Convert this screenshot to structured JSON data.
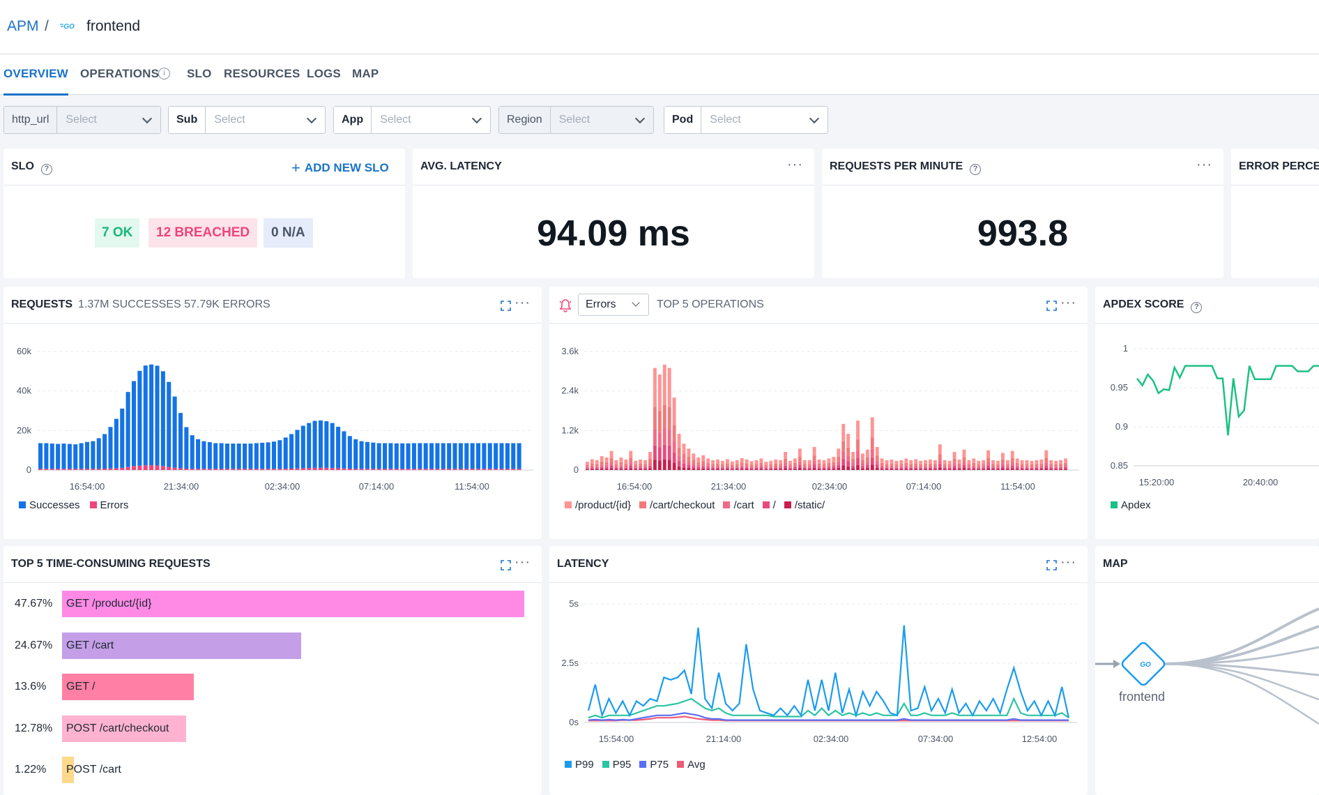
{
  "breadcrumb": {
    "root": "APM",
    "separator": "/",
    "service_icon": "go-icon",
    "service": "frontend"
  },
  "tabs": [
    {
      "label": "OVERVIEW",
      "active": true
    },
    {
      "label": "OPERATIONS",
      "info_icon": "info-icon"
    },
    {
      "label": "SLO"
    },
    {
      "label": "RESOURCES"
    },
    {
      "label": "LOGS"
    },
    {
      "label": "MAP"
    }
  ],
  "filters": [
    {
      "label": "http_url",
      "placeholder": "Select"
    },
    {
      "label": "Sub",
      "placeholder": "Select"
    },
    {
      "label": "App",
      "placeholder": "Select"
    },
    {
      "label": "Region",
      "placeholder": "Select"
    },
    {
      "label": "Pod",
      "placeholder": "Select"
    }
  ],
  "slo": {
    "title": "SLO",
    "add_label": "ADD NEW SLO",
    "ok": "7 OK",
    "breached": "12 BREACHED",
    "na": "0 N/A"
  },
  "latency_stat": {
    "title": "AVG. LATENCY",
    "value": "94.09 ms"
  },
  "rpm_stat": {
    "title": "REQUESTS PER MINUTE",
    "value": "993.8"
  },
  "error_stat": {
    "title": "ERROR PERCE"
  },
  "requests": {
    "title": "REQUESTS",
    "subtitle": "1.37M SUCCESSES 57.79K ERRORS",
    "legend": [
      "Successes",
      "Errors"
    ]
  },
  "operations": {
    "dropdown": "Errors",
    "title": "TOP 5 OPERATIONS",
    "legend": [
      "/product/{id}",
      "/cart/checkout",
      "/cart",
      "/",
      "/static/"
    ]
  },
  "apdex": {
    "title": "APDEX SCORE",
    "legend": [
      "Apdex"
    ]
  },
  "top5": {
    "title": "TOP 5 TIME-CONSUMING REQUESTS",
    "items": [
      {
        "pct": "47.67%",
        "label": "GET /product/{id}",
        "value": 47.67,
        "color": "#ff8ae6"
      },
      {
        "pct": "24.67%",
        "label": "GET /cart",
        "value": 24.67,
        "color": "#c49fe8"
      },
      {
        "pct": "13.6%",
        "label": "GET /",
        "value": 13.6,
        "color": "#ff80a4"
      },
      {
        "pct": "12.78%",
        "label": "POST /cart/checkout",
        "value": 12.78,
        "color": "#ffb3d0"
      },
      {
        "pct": "1.22%",
        "label": "POST /cart",
        "value": 1.22,
        "color": "#ffd88a"
      }
    ]
  },
  "latency_chart": {
    "title": "LATENCY",
    "legend": [
      "P99",
      "P95",
      "P75",
      "Avg"
    ]
  },
  "map": {
    "title": "MAP",
    "node_label": "frontend",
    "node_icon": "go-icon"
  },
  "colors": {
    "accent": "#1a73c8",
    "successes": "#1473e6",
    "errors": "#f0457a",
    "op_product": "#ff9494",
    "op_checkout": "#f27a7a",
    "op_cart": "#f26b86",
    "op_root": "#e84a7c",
    "op_static": "#c7204f",
    "apdex": "#1cc083",
    "p99": "#1a9bf0",
    "p95": "#2bc4a3",
    "p75": "#5b6ef5",
    "avg": "#f05a74"
  },
  "chart_data": [
    {
      "type": "bar",
      "title": "REQUESTS",
      "x_ticks": [
        "16:54:00",
        "21:34:00",
        "02:34:00",
        "07:14:00",
        "11:54:00"
      ],
      "y_ticks": [
        "0",
        "20k",
        "40k",
        "60k"
      ],
      "ylim": [
        0,
        60000
      ],
      "series": [
        {
          "name": "Successes",
          "values": [
            13000,
            13000,
            12800,
            12600,
            12800,
            12600,
            12400,
            13000,
            13600,
            14000,
            15500,
            17500,
            21000,
            25000,
            30000,
            38000,
            43000,
            48000,
            50500,
            51000,
            50500,
            48000,
            43000,
            36000,
            28000,
            21000,
            17000,
            15000,
            14000,
            13500,
            13000,
            13000,
            12800,
            12800,
            12800,
            12800,
            12800,
            13000,
            13200,
            13400,
            13800,
            14500,
            15800,
            17500,
            19500,
            21500,
            22800,
            23800,
            24000,
            23600,
            22800,
            21000,
            18800,
            16500,
            15000,
            14000,
            13600,
            13300,
            13000,
            13000,
            13000,
            12900,
            12900,
            12900,
            13000,
            13000,
            13000,
            13000,
            13000,
            13000,
            13000,
            13000,
            13000,
            13000,
            13000,
            13000,
            13000,
            13000,
            13000,
            13000,
            13000,
            13000,
            13000
          ]
        },
        {
          "name": "Errors",
          "values": [
            600,
            600,
            600,
            600,
            600,
            600,
            600,
            600,
            600,
            600,
            600,
            700,
            800,
            900,
            1100,
            1500,
            2000,
            2200,
            2400,
            2400,
            2300,
            2000,
            1600,
            1200,
            900,
            700,
            600,
            600,
            600,
            600,
            600,
            600,
            600,
            600,
            600,
            600,
            600,
            600,
            600,
            600,
            600,
            600,
            650,
            700,
            800,
            900,
            1000,
            1100,
            1100,
            1100,
            1000,
            900,
            800,
            700,
            600,
            600,
            600,
            600,
            600,
            600,
            600,
            600,
            600,
            600,
            600,
            600,
            600,
            600,
            600,
            600,
            600,
            600,
            600,
            600,
            600,
            600,
            600,
            600,
            600,
            600,
            600,
            600,
            600
          ]
        }
      ],
      "legend_position": "bottom-left"
    },
    {
      "type": "bar",
      "title": "TOP 5 OPERATIONS",
      "x_ticks": [
        "16:54:00",
        "21:34:00",
        "02:34:00",
        "07:14:00",
        "11:54:00"
      ],
      "y_ticks": [
        "0",
        "1.2k",
        "2.4k",
        "3.6k"
      ],
      "ylim": [
        0,
        3600
      ],
      "stacked": true,
      "series_names": [
        "/product/{id}",
        "/cart/checkout",
        "/cart",
        "/",
        "/static/"
      ],
      "totals": [
        250,
        330,
        300,
        420,
        380,
        580,
        300,
        380,
        320,
        580,
        280,
        320,
        300,
        550,
        3100,
        2900,
        3200,
        3100,
        2200,
        1100,
        800,
        650,
        500,
        380,
        450,
        350,
        300,
        320,
        280,
        330,
        260,
        300,
        360,
        320,
        270,
        300,
        350,
        250,
        280,
        320,
        300,
        550,
        280,
        350,
        650,
        300,
        300,
        700,
        320,
        300,
        350,
        400,
        650,
        1400,
        1100,
        550,
        1500,
        500,
        620,
        1600,
        700,
        350,
        300,
        320,
        280,
        300,
        350,
        300,
        330,
        280,
        300,
        320,
        300,
        780,
        300,
        280,
        550,
        320,
        620,
        300,
        350,
        280,
        300,
        600,
        300,
        280,
        520,
        300,
        580,
        350,
        300,
        300,
        280,
        300,
        320,
        600,
        300,
        280,
        300,
        350
      ]
    },
    {
      "type": "line",
      "title": "APDEX SCORE",
      "x_ticks": [
        "15:20:00",
        "20:40:00"
      ],
      "y_ticks": [
        "0.85",
        "0.9",
        "0.95",
        "1"
      ],
      "ylim": [
        0.85,
        1
      ],
      "series": [
        {
          "name": "Apdex",
          "values": [
            0.962,
            0.953,
            0.967,
            0.959,
            0.943,
            0.948,
            0.947,
            0.976,
            0.963,
            0.978,
            0.978,
            0.978,
            0.978,
            0.978,
            0.978,
            0.962,
            0.962,
            0.889,
            0.962,
            0.913,
            0.921,
            0.978,
            0.961,
            0.961,
            0.961,
            0.961,
            0.978,
            0.978,
            0.978,
            0.978,
            0.971,
            0.971,
            0.971,
            0.978,
            0.978
          ]
        }
      ]
    },
    {
      "type": "bar",
      "title": "TOP 5 TIME-CONSUMING REQUESTS",
      "categories": [
        "GET /product/{id}",
        "GET /cart",
        "GET /",
        "POST /cart/checkout",
        "POST /cart"
      ],
      "values": [
        47.67,
        24.67,
        13.6,
        12.78,
        1.22
      ],
      "orientation": "horizontal"
    },
    {
      "type": "line",
      "title": "LATENCY",
      "x_ticks": [
        "15:54:00",
        "21:14:00",
        "02:34:00",
        "07:34:00",
        "12:54:00"
      ],
      "y_ticks": [
        "0s",
        "2.5s",
        "5s"
      ],
      "ylim": [
        0,
        5
      ],
      "series": [
        {
          "name": "P99",
          "values": [
            0.5,
            1.6,
            0.3,
            1.0,
            0.4,
            0.9,
            0.3,
            0.9,
            0.7,
            1.0,
            0.9,
            1.9,
            1.8,
            1.9,
            2.2,
            1.2,
            4.0,
            1.0,
            0.6,
            2.1,
            0.8,
            0.5,
            0.8,
            3.3,
            1.4,
            0.5,
            0.4,
            0.3,
            0.6,
            0.3,
            0.7,
            0.3,
            1.8,
            0.5,
            1.8,
            0.5,
            2.1,
            0.4,
            1.4,
            0.3,
            1.3,
            0.7,
            1.3,
            0.9,
            0.4,
            0.3,
            4.1,
            0.5,
            0.6,
            1.5,
            0.5,
            1.0,
            0.4,
            1.4,
            0.4,
            0.8,
            0.3,
            0.9,
            0.5,
            1.0,
            0.4,
            1.4,
            2.3,
            1.3,
            0.5,
            0.9,
            0.3,
            0.9,
            0.3,
            1.5,
            0.2
          ]
        },
        {
          "name": "P95",
          "values": [
            0.2,
            0.3,
            0.2,
            0.3,
            0.3,
            0.3,
            0.3,
            0.4,
            0.5,
            0.6,
            0.7,
            0.7,
            0.75,
            0.8,
            0.9,
            1.0,
            0.8,
            0.6,
            0.5,
            0.6,
            0.4,
            0.3,
            0.3,
            0.3,
            0.3,
            0.3,
            0.3,
            0.25,
            0.25,
            0.25,
            0.25,
            0.25,
            0.5,
            0.3,
            0.6,
            0.3,
            0.5,
            0.3,
            0.4,
            0.3,
            0.4,
            0.3,
            0.4,
            0.3,
            0.3,
            0.3,
            0.8,
            0.3,
            0.3,
            0.4,
            0.3,
            0.3,
            0.3,
            0.4,
            0.3,
            0.3,
            0.3,
            0.3,
            0.3,
            0.3,
            0.3,
            0.3,
            1.0,
            0.4,
            0.3,
            0.3,
            0.3,
            0.3,
            0.3,
            0.4,
            0.2
          ]
        },
        {
          "name": "P75",
          "values": [
            0.1,
            0.12,
            0.1,
            0.12,
            0.1,
            0.12,
            0.1,
            0.15,
            0.2,
            0.25,
            0.3,
            0.3,
            0.3,
            0.35,
            0.4,
            0.35,
            0.3,
            0.2,
            0.15,
            0.15,
            0.1,
            0.1,
            0.1,
            0.1,
            0.1,
            0.1,
            0.1,
            0.1,
            0.1,
            0.1,
            0.1,
            0.1,
            0.1,
            0.1,
            0.1,
            0.1,
            0.1,
            0.1,
            0.1,
            0.1,
            0.1,
            0.1,
            0.1,
            0.1,
            0.1,
            0.1,
            0.15,
            0.1,
            0.1,
            0.1,
            0.1,
            0.1,
            0.1,
            0.1,
            0.1,
            0.1,
            0.1,
            0.1,
            0.1,
            0.1,
            0.1,
            0.1,
            0.15,
            0.1,
            0.1,
            0.1,
            0.1,
            0.1,
            0.1,
            0.1,
            0.1
          ]
        },
        {
          "name": "Avg",
          "values": [
            0.08,
            0.08,
            0.08,
            0.08,
            0.08,
            0.1,
            0.1,
            0.1,
            0.12,
            0.15,
            0.2,
            0.2,
            0.2,
            0.22,
            0.25,
            0.2,
            0.15,
            0.12,
            0.1,
            0.1,
            0.08,
            0.08,
            0.08,
            0.08,
            0.08,
            0.08,
            0.08,
            0.08,
            0.08,
            0.08,
            0.08,
            0.08,
            0.08,
            0.08,
            0.08,
            0.08,
            0.08,
            0.08,
            0.08,
            0.08,
            0.08,
            0.08,
            0.08,
            0.08,
            0.08,
            0.08,
            0.08,
            0.08,
            0.08,
            0.08,
            0.08,
            0.08,
            0.08,
            0.08,
            0.08,
            0.08,
            0.08,
            0.08,
            0.08,
            0.08,
            0.08,
            0.08,
            0.08,
            0.08,
            0.08,
            0.08,
            0.08,
            0.08,
            0.08,
            0.08,
            0.08
          ]
        }
      ]
    }
  ]
}
